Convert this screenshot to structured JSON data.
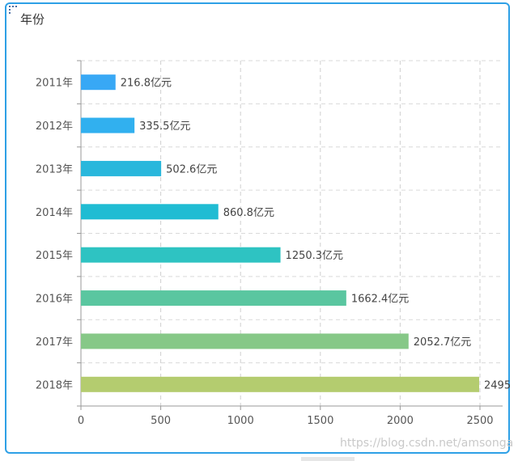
{
  "panel": {
    "title": "年份",
    "grip_icon": "drag-handle-icon"
  },
  "watermark": "https://blog.csdn.net/amsonga",
  "chart_data": {
    "type": "bar",
    "orientation": "horizontal",
    "categories": [
      "2011年",
      "2012年",
      "2013年",
      "2014年",
      "2015年",
      "2016年",
      "2017年",
      "2018年"
    ],
    "values": [
      216.8,
      335.5,
      502.6,
      860.8,
      1250.3,
      1662.4,
      2052.7,
      2495
    ],
    "data_labels": [
      "216.8亿元",
      "335.5亿元",
      "502.6亿元",
      "860.8亿元",
      "1250.3亿元",
      "1662.4亿元",
      "2052.7亿元",
      "2495"
    ],
    "colors": [
      "#38a8f5",
      "#31b0ef",
      "#29b7dc",
      "#20bcd3",
      "#2ec3c2",
      "#5ac6a0",
      "#86c887",
      "#b4cc6f"
    ],
    "xlim": [
      0,
      2500
    ],
    "xticks": [
      0,
      500,
      1000,
      1500,
      2000,
      2500
    ],
    "grid": true,
    "grid_style": "dashed"
  }
}
